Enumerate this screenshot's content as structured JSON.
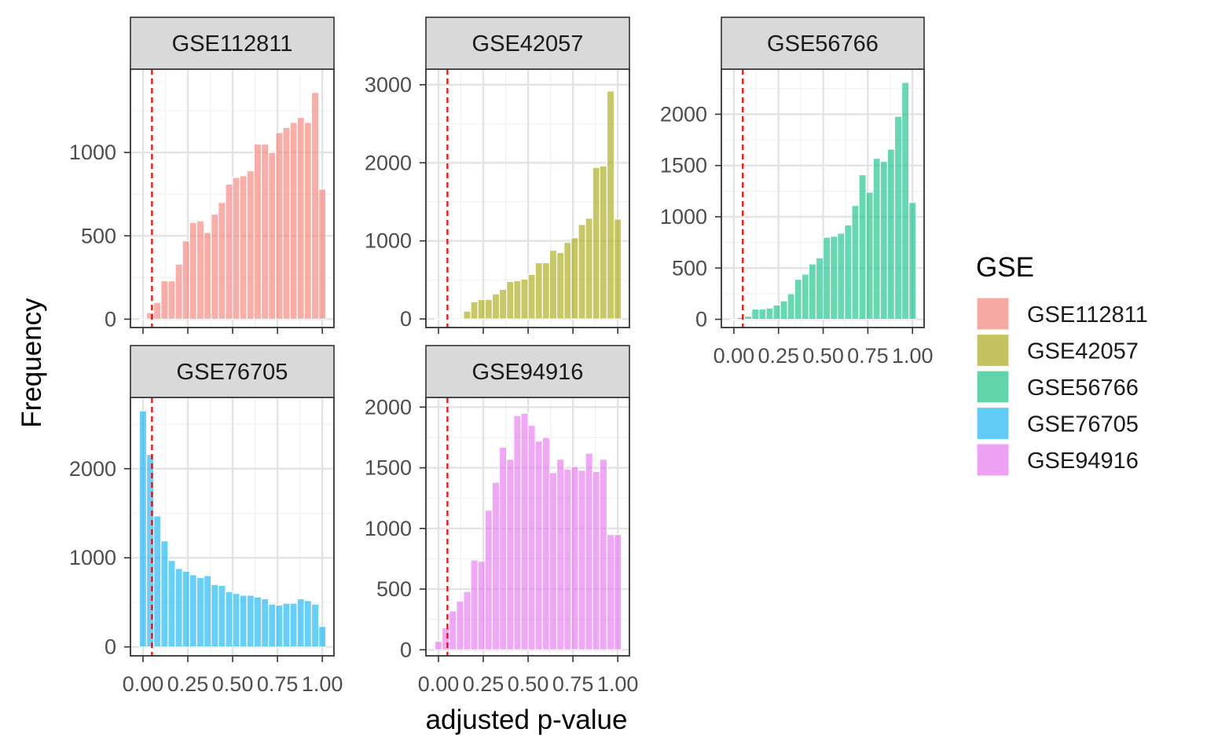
{
  "chart_data": {
    "type": "bar",
    "xlabel": "adjusted p-value",
    "ylabel": "Frequency",
    "x_ticks": [
      "0.00",
      "0.25",
      "0.50",
      "0.75",
      "1.00"
    ],
    "x_tick_values": [
      0,
      0.25,
      0.5,
      0.75,
      1.0
    ],
    "bin_width": 0.04,
    "bin_centers": [
      0,
      0.04,
      0.08,
      0.12,
      0.16,
      0.2,
      0.24,
      0.28,
      0.32,
      0.36,
      0.4,
      0.44,
      0.48,
      0.52,
      0.56,
      0.6,
      0.64,
      0.68,
      0.72,
      0.76,
      0.8,
      0.84,
      0.88,
      0.92,
      0.96,
      1.0
    ],
    "cutoff_line": {
      "x": 0.05,
      "color": "#ff0000",
      "style": "dashed"
    },
    "legend": {
      "title": "GSE",
      "position": "right",
      "entries": [
        {
          "label": "GSE112811",
          "color": "#F8766D"
        },
        {
          "label": "GSE42057",
          "color": "#A3A500"
        },
        {
          "label": "GSE56766",
          "color": "#00BF7D"
        },
        {
          "label": "GSE76705",
          "color": "#00B0F6"
        },
        {
          "label": "GSE94916",
          "color": "#E76BF3"
        }
      ]
    },
    "panels": [
      {
        "name": "GSE112811",
        "color": "#F8766D",
        "ylim": [
          -50,
          1500
        ],
        "y_ticks": [
          0,
          500,
          1000
        ],
        "y_tick_labels": [
          "0",
          "500",
          "1000"
        ],
        "x_tick_labels_shown": false,
        "values": [
          0,
          40,
          100,
          230,
          230,
          330,
          470,
          580,
          590,
          520,
          630,
          700,
          810,
          850,
          860,
          890,
          1050,
          1050,
          1000,
          1120,
          1150,
          1180,
          1210,
          1180,
          1360,
          780
        ]
      },
      {
        "name": "GSE42057",
        "color": "#A3A500",
        "ylim": [
          -110,
          3200
        ],
        "y_ticks": [
          0,
          1000,
          2000,
          3000
        ],
        "y_tick_labels": [
          "0",
          "1000",
          "2000",
          "3000"
        ],
        "x_tick_labels_shown": false,
        "values": [
          0,
          0,
          0,
          0,
          100,
          220,
          250,
          250,
          320,
          380,
          480,
          490,
          510,
          570,
          720,
          720,
          880,
          850,
          980,
          1040,
          1210,
          1290,
          1940,
          1960,
          2920,
          1280
        ]
      },
      {
        "name": "GSE56766",
        "color": "#00BF7D",
        "ylim": [
          -80,
          2440
        ],
        "y_ticks": [
          0,
          500,
          1000,
          1500,
          2000
        ],
        "y_tick_labels": [
          "0",
          "500",
          "1000",
          "1500",
          "2000"
        ],
        "x_tick_labels_shown": true,
        "values": [
          0,
          20,
          30,
          100,
          100,
          110,
          140,
          180,
          250,
          390,
          440,
          540,
          600,
          800,
          810,
          840,
          920,
          1110,
          1410,
          1240,
          1570,
          1540,
          1660,
          1980,
          2310,
          1140
        ]
      },
      {
        "name": "GSE76705",
        "color": "#00B0F6",
        "ylim": [
          -100,
          2800
        ],
        "y_ticks": [
          0,
          1000,
          2000
        ],
        "y_tick_labels": [
          "0",
          "1000",
          "2000"
        ],
        "x_tick_labels_shown": true,
        "values": [
          2650,
          2160,
          1470,
          1190,
          970,
          880,
          850,
          810,
          780,
          800,
          700,
          690,
          620,
          600,
          580,
          580,
          560,
          540,
          480,
          470,
          490,
          490,
          540,
          520,
          480,
          230
        ]
      },
      {
        "name": "GSE94916",
        "color": "#E76BF3",
        "ylim": [
          -50,
          2080
        ],
        "y_ticks": [
          0,
          500,
          1000,
          1500,
          2000
        ],
        "y_tick_labels": [
          "0",
          "500",
          "1000",
          "1500",
          "2000"
        ],
        "x_tick_labels_shown": true,
        "values": [
          70,
          180,
          320,
          400,
          480,
          740,
          730,
          1150,
          1380,
          1670,
          1570,
          1930,
          1950,
          1850,
          1720,
          1750,
          1460,
          1570,
          1490,
          1510,
          1480,
          1620,
          1470,
          1570,
          950,
          950
        ]
      }
    ]
  }
}
